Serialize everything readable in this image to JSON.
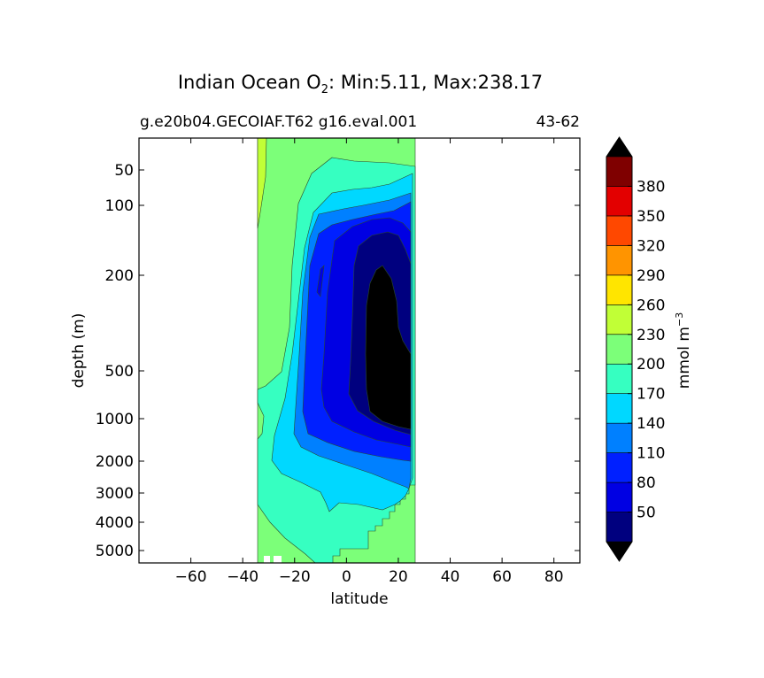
{
  "chart_data": {
    "type": "heatmap",
    "title": "Indian Ocean O",
    "title_subscript": "2",
    "title_suffix": ": Min:5.11, Max:238.17",
    "subtitle_left": "g.e20b04.GECOIAF.T62 g16.eval.001",
    "subtitle_right": "43-62",
    "xlabel": "latitude",
    "ylabel": "depth (m)",
    "xlim": [
      -80,
      90
    ],
    "x_ticks": [
      -60,
      -40,
      -20,
      0,
      20,
      40,
      60,
      80
    ],
    "y_ticks": [
      50,
      100,
      200,
      500,
      1000,
      2000,
      3000,
      4000,
      5000
    ],
    "y_scale": "nonlinear (depth, increasing downward)",
    "colorbar": {
      "label": "mmol m",
      "label_superscript": "−3",
      "levels": [
        20,
        50,
        80,
        110,
        140,
        170,
        200,
        230,
        260,
        290,
        320,
        350,
        380,
        410
      ],
      "tick_labels": [
        "50",
        "80",
        "110",
        "140",
        "170",
        "200",
        "230",
        "260",
        "290",
        "320",
        "350",
        "380"
      ],
      "colors": [
        "#00007f",
        "#0000e3",
        "#0020ff",
        "#0080ff",
        "#00d8ff",
        "#36ffc1",
        "#7cff79",
        "#c1ff36",
        "#ffe500",
        "#ff9400",
        "#ff4800",
        "#e30000",
        "#7f0000"
      ],
      "under_color": "#000000",
      "over_color": "#000000",
      "extend": "both"
    },
    "fields": [
      {
        "level": "<20",
        "region": "core 10-25N, ~180-1400 m"
      },
      {
        "level": "20-50",
        "region": "0-25N, ~150-1600 m"
      },
      {
        "level": "50-80",
        "region": "-5-25N, ~100-1800 m"
      },
      {
        "level": "80-110",
        "region": "-10-25N, ~80-2000 m"
      },
      {
        "level": "110-140",
        "region": "-15-25N, ~70-2600 m"
      },
      {
        "level": "140-170",
        "region": "-28-25N, ~55-4000 m"
      },
      {
        "level": "170-200",
        "region": "-34-25N, ~40-5000 m"
      },
      {
        "level": "200-230",
        "region": "-34-25N, surface / west margin"
      },
      {
        "level": "230-260",
        "region": "-34S near surface"
      }
    ]
  }
}
